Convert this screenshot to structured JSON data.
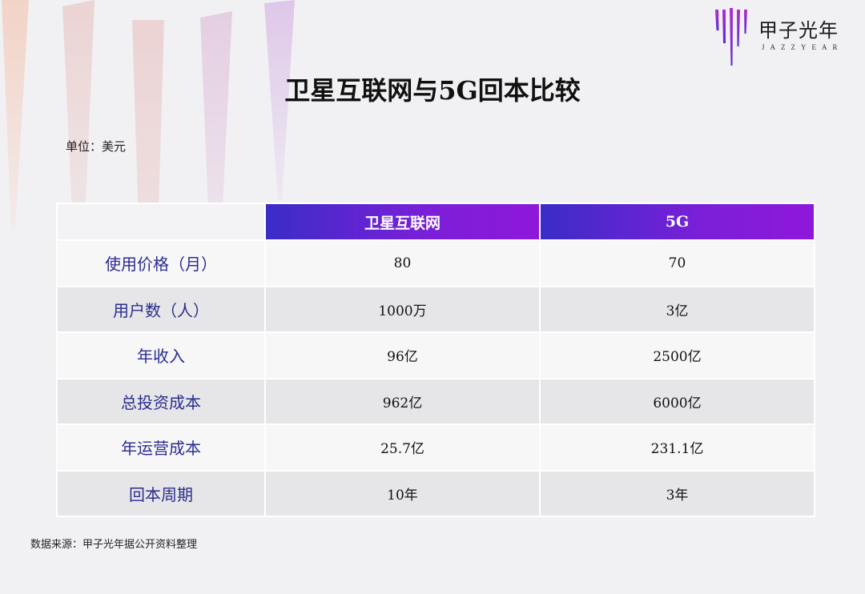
{
  "logo": {
    "name_cn": "甲子光年",
    "name_en": "JAZZYEAR",
    "colors": [
      "#5b2bd6",
      "#b02cc9",
      "#7a2fe0"
    ]
  },
  "title": "卫星互联网与5G回本比较",
  "unit_label": "单位：美元",
  "table": {
    "columns": [
      "",
      "卫星互联网",
      "5G"
    ],
    "rows": [
      {
        "label": "使用价格（月）",
        "values": [
          "80",
          "70"
        ]
      },
      {
        "label": "用户数（人）",
        "values": [
          "1000万",
          "3亿"
        ]
      },
      {
        "label": "年收入",
        "values": [
          "96亿",
          "2500亿"
        ]
      },
      {
        "label": "总投资成本",
        "values": [
          "962亿",
          "6000亿"
        ]
      },
      {
        "label": "年运营成本",
        "values": [
          "25.7亿",
          "231.1亿"
        ]
      },
      {
        "label": "回本周期",
        "values": [
          "10年",
          "3年"
        ]
      }
    ]
  },
  "source_note": "数据来源：甲子光年据公开资料整理",
  "colors": {
    "header_gradient_start": "#3b2cc7",
    "header_gradient_end": "#8f17da",
    "row_label_text": "#2b2c8f",
    "row_light": "#f7f7f8",
    "row_dark": "#e6e6e8"
  }
}
